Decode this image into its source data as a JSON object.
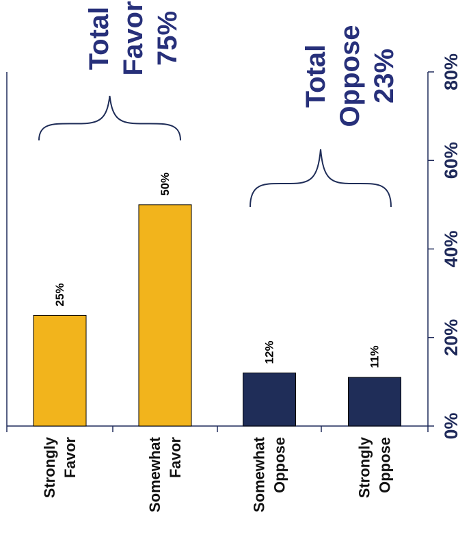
{
  "chart_data": {
    "type": "bar",
    "orientation": "rotated-90",
    "categories": [
      [
        "Strongly",
        "Favor"
      ],
      [
        "Somewhat",
        "Favor"
      ],
      [
        "Somewhat",
        "Oppose"
      ],
      [
        "Strongly",
        "Oppose"
      ]
    ],
    "values": [
      25,
      50,
      12,
      11
    ],
    "value_labels": [
      "25%",
      "50%",
      "12%",
      "11%"
    ],
    "bar_colors": [
      "#F2B41C",
      "#F2B41C",
      "#1F2D58",
      "#1F2D58"
    ],
    "ylim": [
      0,
      80
    ],
    "yticks": [
      0,
      20,
      40,
      60,
      80
    ],
    "ytick_labels": [
      "0%",
      "20%",
      "40%",
      "60%",
      "80%"
    ],
    "grid": false,
    "annotations": [
      {
        "lines": [
          "Total",
          "Favor",
          "75%"
        ],
        "spans_categories": [
          0,
          1
        ]
      },
      {
        "lines": [
          "Total",
          "Oppose",
          "23%"
        ],
        "spans_categories": [
          2,
          3
        ]
      }
    ],
    "colors": {
      "axis": "#1F2A5A",
      "total_text": "#27307A",
      "brace": "#1F2D58"
    }
  }
}
